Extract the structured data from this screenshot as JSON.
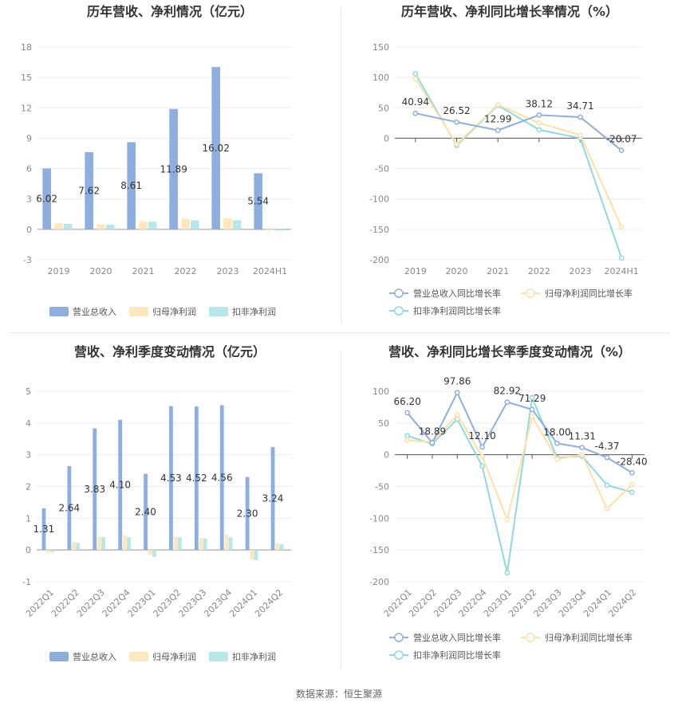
{
  "source_text": "数据来源：恒生聚源",
  "colors": {
    "revenue": "#8eaee0",
    "parent_net": "#fde7bd",
    "deducted_net": "#b7e7ea",
    "revenue_line": "#8eaee0",
    "parent_line": "#fde0a8",
    "deducted_line": "#8fd9de"
  },
  "chart_data": [
    {
      "type": "bar",
      "title": "历年营收、净利情况（亿元）",
      "categories": [
        "2019",
        "2020",
        "2021",
        "2022",
        "2023",
        "2024H1"
      ],
      "ylim": [
        -3,
        18
      ],
      "yticks": [
        -3,
        0,
        3,
        6,
        9,
        12,
        15,
        18
      ],
      "series": [
        {
          "name": "营业总收入",
          "values": [
            6.02,
            7.62,
            8.61,
            11.89,
            16.02,
            5.54
          ],
          "labels": [
            "6.02",
            "7.62",
            "8.61",
            "11.89",
            "16.02",
            "5.54"
          ]
        },
        {
          "name": "归母净利润",
          "values": [
            0.6,
            0.5,
            0.8,
            1.05,
            1.1,
            -0.1
          ]
        },
        {
          "name": "扣非净利润",
          "values": [
            0.55,
            0.45,
            0.75,
            0.9,
            0.9,
            -0.12
          ]
        }
      ],
      "legend": "bottom"
    },
    {
      "type": "line",
      "title": "历年营收、净利同比增长率情况（%）",
      "categories": [
        "2019",
        "2020",
        "2021",
        "2022",
        "2023",
        "2024H1"
      ],
      "ylim": [
        -200,
        150
      ],
      "yticks": [
        -200,
        -150,
        -100,
        -50,
        0,
        50,
        100,
        150
      ],
      "series": [
        {
          "name": "营业总收入同比增长率",
          "values": [
            40.94,
            26.52,
            12.99,
            38.12,
            34.71,
            -20.07
          ],
          "labels": [
            "40.94",
            "26.52",
            "12.99",
            "38.12",
            "34.71",
            "-20.07"
          ]
        },
        {
          "name": "归母净利润同比增长率",
          "values": [
            98,
            -10,
            55,
            25,
            5,
            -146
          ]
        },
        {
          "name": "扣非净利润同比增长率",
          "values": [
            106,
            -12,
            54,
            14,
            0,
            -197
          ]
        }
      ],
      "legend": "bottom"
    },
    {
      "type": "bar",
      "title": "营收、净利季度变动情况（亿元）",
      "categories": [
        "2022Q1",
        "2022Q2",
        "2022Q3",
        "2022Q4",
        "2023Q1",
        "2023Q2",
        "2023Q3",
        "2023Q4",
        "2024Q1",
        "2024Q2"
      ],
      "ylim": [
        -1,
        5
      ],
      "yticks": [
        -1,
        0,
        1,
        2,
        3,
        4,
        5
      ],
      "series": [
        {
          "name": "营业总收入",
          "values": [
            1.31,
            2.64,
            3.83,
            4.1,
            2.4,
            4.53,
            4.52,
            4.56,
            2.3,
            3.24
          ],
          "labels": [
            "1.31",
            "2.64",
            "3.83",
            "4.10",
            "2.40",
            "4.53",
            "4.52",
            "4.56",
            "2.30",
            "3.24"
          ]
        },
        {
          "name": "归母净利润",
          "values": [
            -0.08,
            0.25,
            0.42,
            0.47,
            -0.15,
            0.42,
            0.38,
            0.48,
            -0.3,
            0.22
          ]
        },
        {
          "name": "扣非净利润",
          "values": [
            -0.06,
            0.22,
            0.4,
            0.4,
            -0.22,
            0.4,
            0.36,
            0.4,
            -0.32,
            0.18
          ]
        }
      ],
      "legend": "bottom"
    },
    {
      "type": "line",
      "title": "营收、净利同比增长率季度变动情况（%）",
      "categories": [
        "2022Q1",
        "2022Q2",
        "2022Q3",
        "2022Q4",
        "2023Q1",
        "2023Q2",
        "2023Q3",
        "2023Q4",
        "2024Q1",
        "2024Q2"
      ],
      "ylim": [
        -200,
        100
      ],
      "yticks": [
        -200,
        -150,
        -100,
        -50,
        0,
        50,
        100
      ],
      "series": [
        {
          "name": "营业总收入同比增长率",
          "values": [
            66.2,
            18.89,
            97.86,
            12.1,
            82.92,
            71.29,
            18.0,
            11.31,
            -4.37,
            -28.4
          ],
          "labels": [
            "66.20",
            "18.89",
            "97.86",
            "12.10",
            "82.92",
            "71.29",
            "18.00",
            "11.31",
            "-4.37",
            "-28.40"
          ]
        },
        {
          "name": "归母净利润同比增长率",
          "values": [
            23,
            20,
            63,
            -3,
            -102,
            60,
            -7,
            0,
            -85,
            -47
          ]
        },
        {
          "name": "扣非净利润同比增长率",
          "values": [
            30,
            17,
            56,
            -18,
            -186,
            90,
            -5,
            -2,
            -48,
            -59
          ]
        }
      ],
      "legend": "bottom"
    }
  ]
}
